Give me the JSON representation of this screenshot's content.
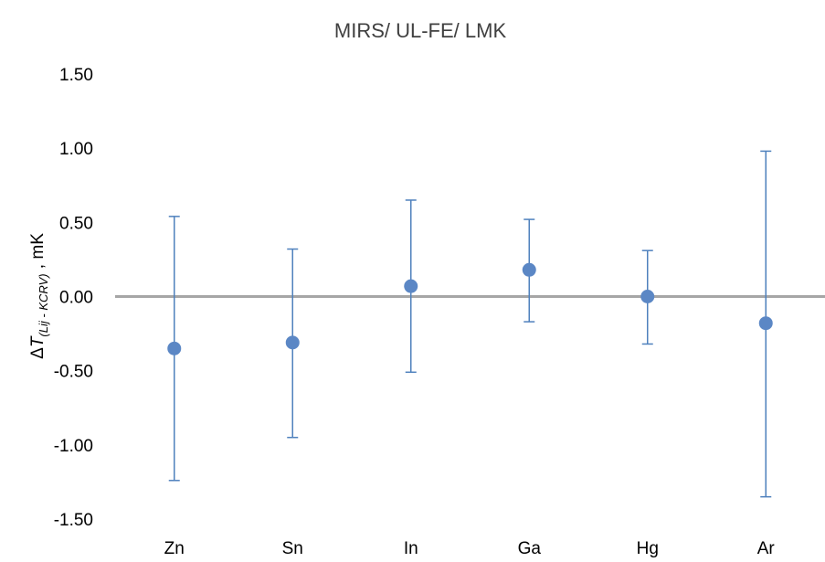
{
  "chart_data": {
    "type": "scatter",
    "title": "MIRS/ UL-FE/ LMK",
    "xlabel": "",
    "ylabel": {
      "prefix": "Δ",
      "symbol": "T",
      "subscript": "(Lij - KCRV)",
      "suffix": " ,  mK"
    },
    "ylim": [
      -1.5,
      1.5
    ],
    "yticks": [
      1.5,
      1.0,
      0.5,
      0.0,
      -0.5,
      -1.0,
      -1.5
    ],
    "ytick_labels": [
      "1.50",
      "1.00",
      "0.50",
      "0.00",
      "-0.50",
      "-1.00",
      "-1.50"
    ],
    "categories": [
      "Zn",
      "Sn",
      "In",
      "Ga",
      "Hg",
      "Ar"
    ],
    "values": [
      -0.35,
      -0.31,
      0.07,
      0.18,
      0.0,
      -0.18
    ],
    "error_upper": [
      0.54,
      0.32,
      0.65,
      0.52,
      0.31,
      0.98
    ],
    "error_lower": [
      -1.24,
      -0.95,
      -0.51,
      -0.17,
      -0.32,
      -1.35
    ],
    "grid": false,
    "zero_line": true,
    "colors": {
      "marker": "#5b87c5",
      "errorbar": "#4f81bd",
      "zero_line": "#a6a6a6"
    }
  }
}
